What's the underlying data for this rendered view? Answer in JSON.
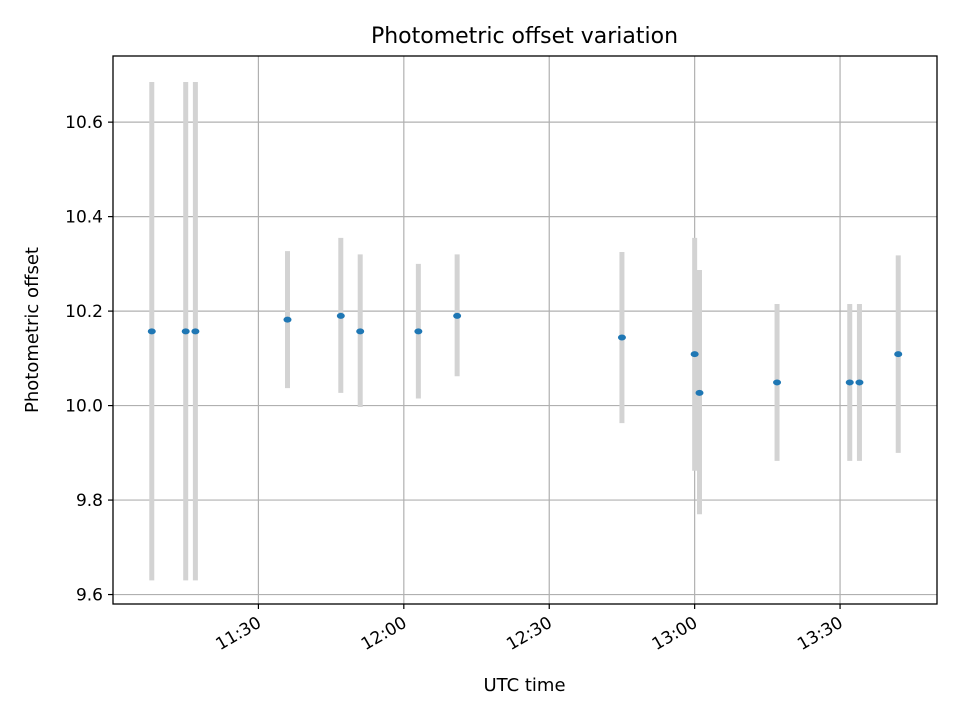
{
  "chart_data": {
    "type": "scatter",
    "title": "Photometric offset variation",
    "xlabel": "UTC time",
    "ylabel": "Photometric offset",
    "x_unit": "UTC time (HH:MM)",
    "xlim": [
      "11:00",
      "13:50"
    ],
    "ylim": [
      9.58,
      10.74
    ],
    "x_ticks": [
      "11:30",
      "12:00",
      "12:30",
      "13:00",
      "13:30"
    ],
    "y_ticks": [
      9.6,
      9.8,
      10.0,
      10.2,
      10.4,
      10.6
    ],
    "y_tick_labels": [
      "9.6",
      "9.8",
      "10.0",
      "10.2",
      "10.4",
      "10.6"
    ],
    "grid": true,
    "marker_color": "#1f77b4",
    "errorbar_color": "#d3d3d3",
    "points": [
      {
        "x": "11:08",
        "y": 10.157,
        "yerr_low": 9.63,
        "yerr_high": 10.685
      },
      {
        "x": "11:15",
        "y": 10.157,
        "yerr_low": 9.63,
        "yerr_high": 10.685
      },
      {
        "x": "11:17",
        "y": 10.157,
        "yerr_low": 9.63,
        "yerr_high": 10.685
      },
      {
        "x": "11:36",
        "y": 10.182,
        "yerr_low": 10.037,
        "yerr_high": 10.327
      },
      {
        "x": "11:47",
        "y": 10.19,
        "yerr_low": 10.027,
        "yerr_high": 10.355
      },
      {
        "x": "11:51",
        "y": 10.157,
        "yerr_low": 9.997,
        "yerr_high": 10.32
      },
      {
        "x": "12:03",
        "y": 10.157,
        "yerr_low": 10.015,
        "yerr_high": 10.3
      },
      {
        "x": "12:11",
        "y": 10.19,
        "yerr_low": 10.062,
        "yerr_high": 10.32
      },
      {
        "x": "12:45",
        "y": 10.144,
        "yerr_low": 9.963,
        "yerr_high": 10.325
      },
      {
        "x": "13:00",
        "y": 10.109,
        "yerr_low": 9.862,
        "yerr_high": 10.355
      },
      {
        "x": "13:01",
        "y": 10.027,
        "yerr_low": 9.77,
        "yerr_high": 10.287
      },
      {
        "x": "13:17",
        "y": 10.049,
        "yerr_low": 9.883,
        "yerr_high": 10.215
      },
      {
        "x": "13:32",
        "y": 10.049,
        "yerr_low": 9.883,
        "yerr_high": 10.215
      },
      {
        "x": "13:34",
        "y": 10.049,
        "yerr_low": 9.883,
        "yerr_high": 10.215
      },
      {
        "x": "13:42",
        "y": 10.109,
        "yerr_low": 9.9,
        "yerr_high": 10.318
      }
    ]
  }
}
